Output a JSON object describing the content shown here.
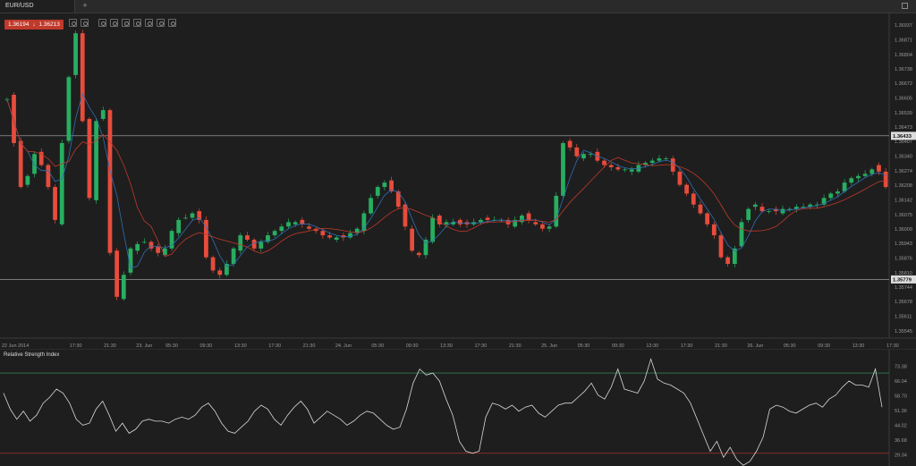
{
  "tabs": [
    {
      "label": "EUR/USD"
    }
  ],
  "tab_add_label": "+",
  "quote": {
    "bid": "1.36194",
    "ask": "1.36213",
    "direction_icon": "arrow-down-icon"
  },
  "toolbar": {
    "icons": [
      "zoom-in-icon",
      "zoom-out-icon",
      "interval-icon",
      "chart-type-icon",
      "indicators-icon",
      "drawing-tools-icon",
      "objects-icon",
      "template-icon",
      "undo-icon"
    ]
  },
  "colors": {
    "background": "#1e1e1e",
    "up": "#27ae60",
    "down": "#e74c3c",
    "ma_fast": "#2e6fb5",
    "ma_slow": "#c0392b",
    "hline_upper": "#b0b0b0",
    "hline_lower": "#b0b0b0",
    "rsi_line": "#d8d8d8",
    "rsi_upper": "#2e7d4f",
    "rsi_lower": "#a8322a"
  },
  "chart_data": [
    {
      "type": "candlestick",
      "symbol": "EUR/USD",
      "y_ticks": [
        "1.36937",
        "1.36871",
        "1.36804",
        "1.36738",
        "1.36672",
        "1.36605",
        "1.36539",
        "1.36473",
        "1.36407",
        "1.36340",
        "1.36274",
        "1.36208",
        "1.36142",
        "1.36075",
        "1.36009",
        "1.35943",
        "1.35876",
        "1.35810",
        "1.35744",
        "1.35678",
        "1.35611",
        "1.35545"
      ],
      "ylim": [
        1.35512,
        1.3697
      ],
      "horizontal_lines": [
        {
          "value": 1.36433,
          "label": "1.36433"
        },
        {
          "value": 1.35779,
          "label": "1.35779"
        }
      ],
      "x_ticks": [
        {
          "i": 0,
          "label": "22 Jun 2014"
        },
        {
          "i": 10,
          "label": "17:30"
        },
        {
          "i": 15,
          "label": "21:30"
        },
        {
          "i": 20,
          "label": "23. Jun"
        },
        {
          "i": 24,
          "label": "05:30"
        },
        {
          "i": 29,
          "label": "09:30"
        },
        {
          "i": 34,
          "label": "13:30"
        },
        {
          "i": 39,
          "label": "17:30"
        },
        {
          "i": 44,
          "label": "21:30"
        },
        {
          "i": 49,
          "label": "24. Jun"
        },
        {
          "i": 54,
          "label": "05:30"
        },
        {
          "i": 59,
          "label": "09:30"
        },
        {
          "i": 64,
          "label": "13:30"
        },
        {
          "i": 69,
          "label": "17:30"
        },
        {
          "i": 74,
          "label": "21:30"
        },
        {
          "i": 79,
          "label": "25. Jun"
        },
        {
          "i": 84,
          "label": "05:30"
        },
        {
          "i": 89,
          "label": "09:30"
        },
        {
          "i": 94,
          "label": "13:30"
        },
        {
          "i": 99,
          "label": "17:30"
        },
        {
          "i": 104,
          "label": "21:30"
        },
        {
          "i": 109,
          "label": "26. Jun"
        },
        {
          "i": 114,
          "label": "05:30"
        },
        {
          "i": 119,
          "label": "09:30"
        },
        {
          "i": 124,
          "label": "13:30"
        },
        {
          "i": 129,
          "label": "17:30"
        },
        {
          "i": 134,
          "label": "21:30"
        },
        {
          "i": 139,
          "label": "27. Jun"
        },
        {
          "i": 144,
          "label": "05:30"
        },
        {
          "i": 149,
          "label": "09:30"
        }
      ],
      "closes": [
        1.366,
        1.364,
        1.362,
        1.3625,
        1.3635,
        1.363,
        1.362,
        1.3605,
        1.364,
        1.367,
        1.369,
        1.365,
        1.3615,
        1.365,
        1.3655,
        1.359,
        1.357,
        1.358,
        1.3592,
        1.3594,
        1.3595,
        1.3592,
        1.359,
        1.3592,
        1.36,
        1.3605,
        1.3606,
        1.3608,
        1.3605,
        1.3588,
        1.3582,
        1.358,
        1.3585,
        1.3592,
        1.3598,
        1.3596,
        1.3592,
        1.3595,
        1.3598,
        1.36,
        1.3602,
        1.3604,
        1.3604,
        1.3603,
        1.3601,
        1.36,
        1.3598,
        1.3597,
        1.3597,
        1.3597,
        1.3599,
        1.3601,
        1.3608,
        1.3615,
        1.362,
        1.3622,
        1.3618,
        1.3611,
        1.3602,
        1.3591,
        1.3589,
        1.3596,
        1.3606,
        1.3603,
        1.3604,
        1.3604,
        1.3603,
        1.3603,
        1.3604,
        1.3605,
        1.3605,
        1.3605,
        1.3605,
        1.3603,
        1.3605,
        1.3607,
        1.3605,
        1.3603,
        1.3601,
        1.3602,
        1.3616,
        1.364,
        1.3638,
        1.3634,
        1.3635,
        1.3635,
        1.3632,
        1.363,
        1.3629,
        1.3628,
        1.3628,
        1.3628,
        1.363,
        1.3631,
        1.3632,
        1.3633,
        1.3633,
        1.3627,
        1.3621,
        1.3617,
        1.3612,
        1.3608,
        1.3603,
        1.3598,
        1.3588,
        1.3585,
        1.3592,
        1.3604,
        1.361,
        1.3612,
        1.3609,
        1.3609,
        1.3609,
        1.361,
        1.361,
        1.3611,
        1.3611,
        1.3612,
        1.3612,
        1.3615,
        1.3617,
        1.3618,
        1.3622,
        1.3624,
        1.3625,
        1.3626,
        1.3628,
        1.3627,
        1.362
      ],
      "opens": [
        1.366,
        1.3662,
        1.3641,
        1.3621,
        1.3626,
        1.3636,
        1.363,
        1.362,
        1.3603,
        1.3641,
        1.3671,
        1.369,
        1.3651,
        1.3614,
        1.3651,
        1.3655,
        1.3591,
        1.3569,
        1.3581,
        1.3591,
        1.3595,
        1.3595,
        1.3593,
        1.3589,
        1.3592,
        1.3599,
        1.3606,
        1.3606,
        1.3609,
        1.3605,
        1.3588,
        1.3582,
        1.358,
        1.3585,
        1.3591,
        1.3598,
        1.3596,
        1.3592,
        1.3595,
        1.3598,
        1.36,
        1.3602,
        1.3603,
        1.3605,
        1.3602,
        1.3601,
        1.36,
        1.3598,
        1.3596,
        1.3598,
        1.3597,
        1.3599,
        1.36,
        1.3608,
        1.3616,
        1.362,
        1.3623,
        1.3618,
        1.3612,
        1.3601,
        1.359,
        1.3589,
        1.3595,
        1.3607,
        1.3603,
        1.3603,
        1.3605,
        1.3604,
        1.3603,
        1.3604,
        1.3606,
        1.3605,
        1.3605,
        1.3605,
        1.3602,
        1.3604,
        1.3608,
        1.3604,
        1.3603,
        1.3601,
        1.3602,
        1.3616,
        1.3641,
        1.3638,
        1.3633,
        1.3635,
        1.3636,
        1.3632,
        1.363,
        1.3629,
        1.3628,
        1.3627,
        1.3627,
        1.363,
        1.3631,
        1.3632,
        1.3633,
        1.3633,
        1.3627,
        1.3621,
        1.3617,
        1.3612,
        1.3608,
        1.3603,
        1.3598,
        1.3588,
        1.3585,
        1.3593,
        1.3605,
        1.3611,
        1.3611,
        1.3609,
        1.361,
        1.3608,
        1.361,
        1.361,
        1.3611,
        1.3611,
        1.3612,
        1.3612,
        1.3615,
        1.3617,
        1.3618,
        1.3622,
        1.3624,
        1.3625,
        1.3626,
        1.363,
        1.3627
      ]
    },
    {
      "type": "line",
      "title": "Relative Strength Index",
      "y_ticks": [
        "73.38",
        "66.04",
        "58.70",
        "51.36",
        "44.02",
        "36.68",
        "29.34"
      ],
      "ylim": [
        25.0,
        78.5
      ],
      "levels": [
        70,
        30
      ],
      "values": [
        60,
        52,
        47,
        51,
        46,
        49,
        55,
        58,
        62,
        60,
        55,
        47,
        44,
        45,
        52,
        56,
        49,
        41,
        45,
        40,
        42,
        46,
        47,
        46,
        46,
        45,
        47,
        48,
        47,
        49,
        53,
        55,
        51,
        45,
        41,
        40,
        43,
        46,
        51,
        54,
        52,
        47,
        44,
        49,
        53,
        56,
        52,
        45,
        48,
        51,
        49,
        47,
        44,
        46,
        49,
        51,
        50,
        47,
        44,
        42,
        43,
        52,
        65,
        72,
        69,
        70,
        66,
        57,
        49,
        36,
        31,
        30,
        31,
        48,
        55,
        54,
        52,
        54,
        51,
        53,
        54,
        50,
        48,
        51,
        54,
        55,
        55,
        58,
        61,
        65,
        59,
        57,
        63,
        72,
        62,
        61,
        60,
        66,
        77,
        67,
        65,
        64,
        62,
        60,
        55,
        47,
        39,
        31,
        36,
        28,
        33,
        27,
        24,
        26,
        31,
        38,
        52,
        54,
        53,
        51,
        50,
        52,
        54,
        55,
        53,
        57,
        59,
        63,
        66,
        64,
        64,
        63,
        72,
        53
      ]
    }
  ]
}
